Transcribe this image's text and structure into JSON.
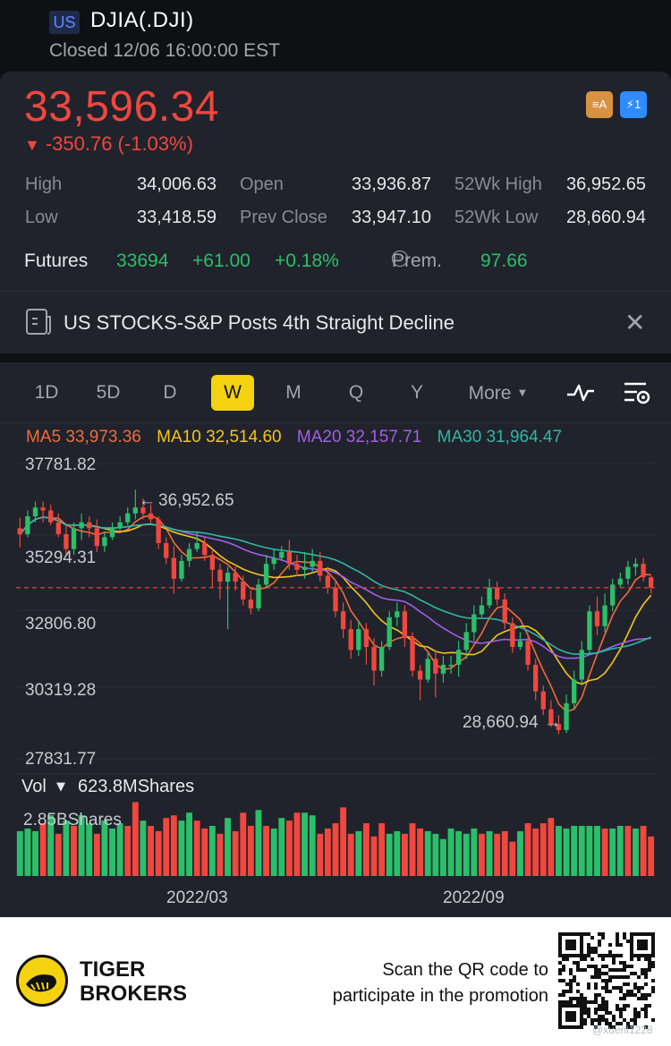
{
  "header": {
    "market": "US",
    "ticker": "DJIA(.DJI)",
    "status": "Closed 12/06 16:00:00 EST"
  },
  "quote": {
    "price": "33,596.34",
    "change": "-350.76 (-1.03%)",
    "down_arrow": "▼",
    "stats": [
      {
        "label": "High",
        "value": "34,006.63"
      },
      {
        "label": "Open",
        "value": "33,936.87"
      },
      {
        "label": "52Wk High",
        "value": "36,952.65"
      },
      {
        "label": "Low",
        "value": "33,418.59"
      },
      {
        "label": "Prev Close",
        "value": "33,947.10"
      },
      {
        "label": "52Wk Low",
        "value": "28,660.94"
      }
    ],
    "futures": {
      "label": "Futures",
      "value": "33694",
      "change": "+61.00",
      "change_pct": "+0.18%",
      "prem_label": "Prem.",
      "prem_value": "97.66"
    },
    "colors": {
      "down": "#f0473f",
      "up": "#2bbf6a",
      "accent": "#f5d20f"
    }
  },
  "news": {
    "headline": "US STOCKS-S&P Posts 4th Straight Decline",
    "icon": "news-icon",
    "close_icon": "close-icon"
  },
  "chart_tabs": {
    "tabs": [
      "1D",
      "5D",
      "D",
      "W",
      "M",
      "Q",
      "Y"
    ],
    "active": "W",
    "more_label": "More",
    "tools": [
      "indicator-icon",
      "chart-settings-icon"
    ]
  },
  "ma": [
    {
      "label": "MA5 33,973.36",
      "color": "#f26b3a"
    },
    {
      "label": "MA10 32,514.60",
      "color": "#f5c518"
    },
    {
      "label": "MA20 32,157.71",
      "color": "#a35de8"
    },
    {
      "label": "MA30 31,964.47",
      "color": "#2fb7a5"
    }
  ],
  "chart_data": {
    "type": "candlestick",
    "y_ticks": [
      "37781.82",
      "35294.31",
      "32806.80",
      "30319.28",
      "27831.77"
    ],
    "ylim": [
      27831.77,
      37781.82
    ],
    "x_ticks": [
      "2022/03",
      "2022/09"
    ],
    "high_marker": "36,952.65",
    "low_marker": "28,660.94",
    "last_close": 33596.34,
    "candles": [
      [
        35600,
        35400,
        35950,
        34950
      ],
      [
        35400,
        36000,
        36200,
        35300
      ],
      [
        36000,
        36300,
        36500,
        35800
      ],
      [
        36300,
        36200,
        36500,
        35800
      ],
      [
        36200,
        35800,
        36400,
        35700
      ],
      [
        35800,
        35400,
        36100,
        35300
      ],
      [
        35400,
        34900,
        35700,
        34700
      ],
      [
        34900,
        35600,
        35800,
        34700
      ],
      [
        35600,
        35800,
        36100,
        35200
      ],
      [
        35800,
        35600,
        36000,
        35300
      ],
      [
        35600,
        35000,
        35900,
        34800
      ],
      [
        35000,
        35300,
        35500,
        34800
      ],
      [
        35300,
        35600,
        35800,
        35200
      ],
      [
        35600,
        35800,
        36000,
        35500
      ],
      [
        35800,
        36100,
        36300,
        35700
      ],
      [
        36100,
        36300,
        36900,
        35900
      ],
      [
        36300,
        36100,
        36600,
        35900
      ],
      [
        36100,
        35900,
        36400,
        35800
      ],
      [
        35900,
        35100,
        36000,
        34900
      ],
      [
        35100,
        34600,
        35300,
        34400
      ],
      [
        34600,
        33900,
        35000,
        33400
      ],
      [
        33900,
        34500,
        34700,
        33800
      ],
      [
        34500,
        34900,
        35100,
        34300
      ],
      [
        34900,
        35100,
        35500,
        34800
      ],
      [
        35100,
        34700,
        35300,
        34500
      ],
      [
        34700,
        34200,
        34900,
        33600
      ],
      [
        34200,
        33800,
        34400,
        33200
      ],
      [
        33800,
        34100,
        34300,
        32200
      ],
      [
        34100,
        33800,
        34400,
        33500
      ],
      [
        33800,
        33200,
        34000,
        33000
      ],
      [
        33200,
        32900,
        33500,
        32700
      ],
      [
        32900,
        33700,
        33900,
        32800
      ],
      [
        33700,
        34400,
        34700,
        33600
      ],
      [
        34400,
        34600,
        34900,
        34200
      ],
      [
        34600,
        34800,
        35000,
        34500
      ],
      [
        34800,
        34400,
        35200,
        34200
      ],
      [
        34400,
        34200,
        34700,
        34000
      ],
      [
        34200,
        34300,
        34800,
        33900
      ],
      [
        34300,
        34500,
        34900,
        34100
      ],
      [
        34500,
        34000,
        34800,
        33800
      ],
      [
        34000,
        33600,
        34300,
        33400
      ],
      [
        33600,
        32800,
        33800,
        32600
      ],
      [
        32800,
        32200,
        33100,
        31900
      ],
      [
        32200,
        31500,
        32500,
        31200
      ],
      [
        31500,
        32200,
        32500,
        31300
      ],
      [
        32200,
        31600,
        32400,
        31000
      ],
      [
        31600,
        30800,
        31900,
        30300
      ],
      [
        30800,
        31600,
        31800,
        30600
      ],
      [
        31600,
        32600,
        32800,
        31500
      ],
      [
        32600,
        32800,
        33100,
        32300
      ],
      [
        32800,
        31900,
        33000,
        31600
      ],
      [
        31900,
        30800,
        32100,
        30600
      ],
      [
        30800,
        30500,
        31000,
        29800
      ],
      [
        30500,
        31200,
        31400,
        30400
      ],
      [
        31200,
        30700,
        31500,
        29900
      ],
      [
        30700,
        31000,
        31300,
        30400
      ],
      [
        31000,
        31000,
        31300,
        30700
      ],
      [
        31000,
        31500,
        31800,
        30600
      ],
      [
        31500,
        32100,
        32400,
        31200
      ],
      [
        32100,
        32700,
        33000,
        31800
      ],
      [
        32700,
        33000,
        33300,
        32600
      ],
      [
        33000,
        33600,
        33900,
        32900
      ],
      [
        33600,
        33200,
        33800,
        33000
      ],
      [
        33200,
        32400,
        33400,
        32200
      ],
      [
        32400,
        31600,
        32600,
        31400
      ],
      [
        31600,
        31800,
        32100,
        31500
      ],
      [
        31800,
        31000,
        32000,
        30800
      ],
      [
        31000,
        30100,
        31200,
        29800
      ],
      [
        30100,
        29500,
        30300,
        29300
      ],
      [
        29500,
        29000,
        29800,
        28900
      ],
      [
        29000,
        28800,
        29300,
        28660
      ],
      [
        28800,
        29700,
        30000,
        28700
      ],
      [
        29700,
        30500,
        30800,
        29500
      ],
      [
        30500,
        31500,
        31800,
        30300
      ],
      [
        31500,
        32800,
        33000,
        31400
      ],
      [
        32800,
        32300,
        33300,
        32000
      ],
      [
        32300,
        33000,
        33400,
        32100
      ],
      [
        33000,
        33700,
        33900,
        32800
      ],
      [
        33700,
        33900,
        34100,
        33600
      ],
      [
        33900,
        34300,
        34500,
        33700
      ],
      [
        34300,
        34400,
        34600,
        34000
      ],
      [
        34400,
        33950,
        34600,
        33800
      ],
      [
        33950,
        33600,
        34000,
        33400
      ]
    ],
    "volume_label": "Vol",
    "volume_value": "623.8MShares",
    "volume_max_label": "2.85BShares",
    "volume_up": [
      true,
      true,
      true,
      false,
      true,
      false,
      true,
      false,
      true,
      true,
      false,
      true,
      true,
      true,
      false,
      false,
      true,
      false,
      false,
      false,
      false,
      true,
      true,
      false,
      false,
      true,
      false,
      true,
      false,
      false,
      false,
      true,
      false,
      true,
      true,
      false,
      false,
      true,
      true,
      false,
      false,
      false,
      false,
      false,
      true,
      false,
      false,
      false,
      true,
      true,
      false,
      false,
      false,
      true,
      true,
      true,
      true,
      true,
      true,
      true,
      false,
      true,
      false,
      false,
      false,
      true,
      false,
      false,
      false,
      false,
      true,
      true,
      true,
      true,
      true,
      true,
      false,
      true,
      true,
      false,
      true,
      false,
      false
    ],
    "volume_values": [
      1.7,
      1.8,
      1.7,
      2.0,
      2.3,
      1.6,
      2.1,
      1.9,
      2.3,
      2.0,
      1.6,
      2.1,
      1.8,
      2.0,
      1.9,
      2.8,
      2.1,
      1.9,
      1.7,
      2.2,
      2.3,
      2.1,
      2.4,
      2.1,
      1.8,
      1.9,
      1.6,
      2.2,
      1.7,
      2.4,
      1.9,
      2.5,
      1.9,
      1.8,
      2.2,
      2.1,
      2.4,
      2.4,
      2.3,
      1.6,
      1.8,
      2.0,
      2.6,
      1.6,
      1.7,
      2.0,
      1.5,
      2.0,
      1.6,
      1.7,
      1.6,
      2.0,
      1.8,
      1.7,
      1.6,
      1.4,
      1.8,
      1.7,
      1.6,
      1.8,
      1.6,
      1.7,
      1.6,
      1.7,
      1.3,
      1.7,
      2.0,
      1.8,
      2.0,
      2.2,
      1.9,
      1.8,
      1.9,
      1.9,
      1.9,
      1.9,
      1.8,
      1.8,
      1.9,
      1.9,
      1.8,
      1.9,
      1.5
    ]
  },
  "promo": {
    "brand_line1": "TIGER",
    "brand_line2": "BROKERS",
    "text_line1": "Scan the QR code to",
    "text_line2": "participate in the promotion",
    "watermark": "@xueni1228"
  }
}
